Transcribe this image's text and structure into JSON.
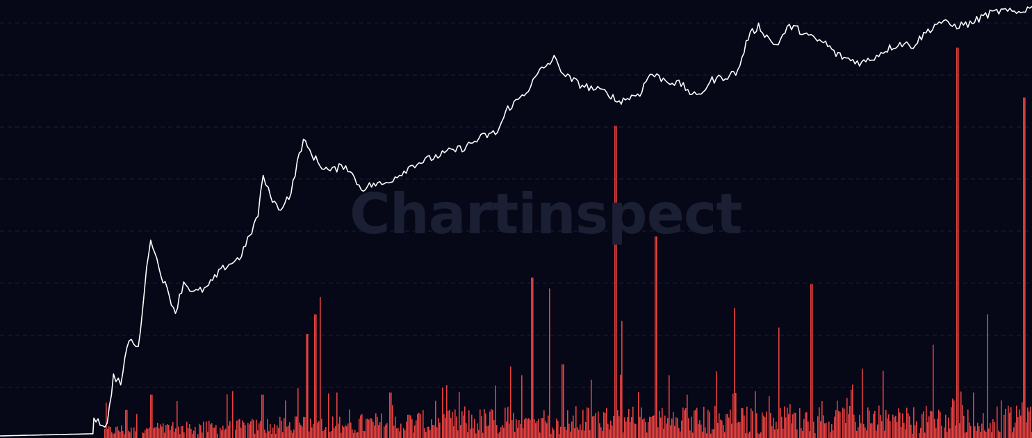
{
  "chart": {
    "watermark": "Chartinspect",
    "background": "#060818",
    "grid_color": "#1c2138",
    "price_color": "#ffffff",
    "bar_color": "#e8413f"
  },
  "chart_data": {
    "type": "line",
    "title": "",
    "xlabel": "",
    "ylabel": "",
    "grid": true,
    "legend": "none",
    "ylim": [
      0,
      1
    ],
    "series": [
      {
        "type": "line",
        "values": [
          [
            0.0,
            0.0
          ],
          [
            0.09,
            0.005
          ],
          [
            0.091,
            0.045
          ],
          [
            0.097,
            0.03
          ],
          [
            0.104,
            0.025
          ],
          [
            0.11,
            0.14
          ],
          [
            0.117,
            0.12
          ],
          [
            0.125,
            0.225
          ],
          [
            0.134,
            0.2
          ],
          [
            0.14,
            0.34
          ],
          [
            0.146,
            0.46
          ],
          [
            0.15,
            0.42
          ],
          [
            0.156,
            0.375
          ],
          [
            0.162,
            0.335
          ],
          [
            0.17,
            0.285
          ],
          [
            0.178,
            0.355
          ],
          [
            0.188,
            0.33
          ],
          [
            0.2,
            0.34
          ],
          [
            0.21,
            0.37
          ],
          [
            0.218,
            0.39
          ],
          [
            0.232,
            0.41
          ],
          [
            0.242,
            0.46
          ],
          [
            0.25,
            0.51
          ],
          [
            0.255,
            0.6
          ],
          [
            0.26,
            0.565
          ],
          [
            0.27,
            0.52
          ],
          [
            0.282,
            0.56
          ],
          [
            0.29,
            0.65
          ],
          [
            0.294,
            0.68
          ],
          [
            0.302,
            0.65
          ],
          [
            0.31,
            0.625
          ],
          [
            0.32,
            0.61
          ],
          [
            0.335,
            0.625
          ],
          [
            0.35,
            0.57
          ],
          [
            0.362,
            0.58
          ],
          [
            0.372,
            0.58
          ],
          [
            0.385,
            0.6
          ],
          [
            0.4,
            0.625
          ],
          [
            0.418,
            0.64
          ],
          [
            0.435,
            0.655
          ],
          [
            0.45,
            0.665
          ],
          [
            0.468,
            0.69
          ],
          [
            0.482,
            0.7
          ],
          [
            0.492,
            0.755
          ],
          [
            0.5,
            0.77
          ],
          [
            0.512,
            0.8
          ],
          [
            0.523,
            0.84
          ],
          [
            0.537,
            0.87
          ],
          [
            0.548,
            0.83
          ],
          [
            0.562,
            0.81
          ],
          [
            0.575,
            0.8
          ],
          [
            0.59,
            0.79
          ],
          [
            0.598,
            0.77
          ],
          [
            0.61,
            0.78
          ],
          [
            0.62,
            0.79
          ],
          [
            0.63,
            0.835
          ],
          [
            0.645,
            0.82
          ],
          [
            0.66,
            0.81
          ],
          [
            0.675,
            0.78
          ],
          [
            0.69,
            0.82
          ],
          [
            0.705,
            0.83
          ],
          [
            0.715,
            0.84
          ],
          [
            0.725,
            0.92
          ],
          [
            0.735,
            0.945
          ],
          [
            0.745,
            0.915
          ],
          [
            0.752,
            0.9
          ],
          [
            0.765,
            0.945
          ],
          [
            0.775,
            0.935
          ],
          [
            0.788,
            0.915
          ],
          [
            0.8,
            0.905
          ],
          [
            0.81,
            0.88
          ],
          [
            0.82,
            0.87
          ],
          [
            0.835,
            0.86
          ],
          [
            0.845,
            0.87
          ],
          [
            0.858,
            0.89
          ],
          [
            0.872,
            0.905
          ],
          [
            0.885,
            0.9
          ],
          [
            0.895,
            0.925
          ],
          [
            0.91,
            0.955
          ],
          [
            0.925,
            0.945
          ],
          [
            0.94,
            0.95
          ],
          [
            0.955,
            0.97
          ],
          [
            0.97,
            0.98
          ],
          [
            0.985,
            0.975
          ],
          [
            1.0,
            0.99
          ]
        ]
      },
      {
        "type": "bar",
        "spikes": [
          [
            0.075,
            0.02
          ],
          [
            0.122,
            0.06
          ],
          [
            0.146,
            0.095
          ],
          [
            0.171,
            0.08
          ],
          [
            0.254,
            0.095
          ],
          [
            0.288,
            0.11
          ],
          [
            0.297,
            0.235
          ],
          [
            0.305,
            0.28
          ],
          [
            0.31,
            0.32
          ],
          [
            0.326,
            0.1
          ],
          [
            0.378,
            0.1
          ],
          [
            0.494,
            0.16
          ],
          [
            0.505,
            0.14
          ],
          [
            0.515,
            0.365
          ],
          [
            0.532,
            0.34
          ],
          [
            0.545,
            0.165
          ],
          [
            0.596,
            0.715
          ],
          [
            0.602,
            0.265
          ],
          [
            0.635,
            0.46
          ],
          [
            0.648,
            0.14
          ],
          [
            0.665,
            0.095
          ],
          [
            0.711,
            0.295
          ],
          [
            0.754,
            0.25
          ],
          [
            0.786,
            0.35
          ],
          [
            0.835,
            0.155
          ],
          [
            0.855,
            0.15
          ],
          [
            0.904,
            0.21
          ],
          [
            0.927,
            0.895
          ],
          [
            0.956,
            0.28
          ],
          [
            0.992,
            0.78
          ]
        ],
        "noise_level": 0.07
      }
    ]
  }
}
